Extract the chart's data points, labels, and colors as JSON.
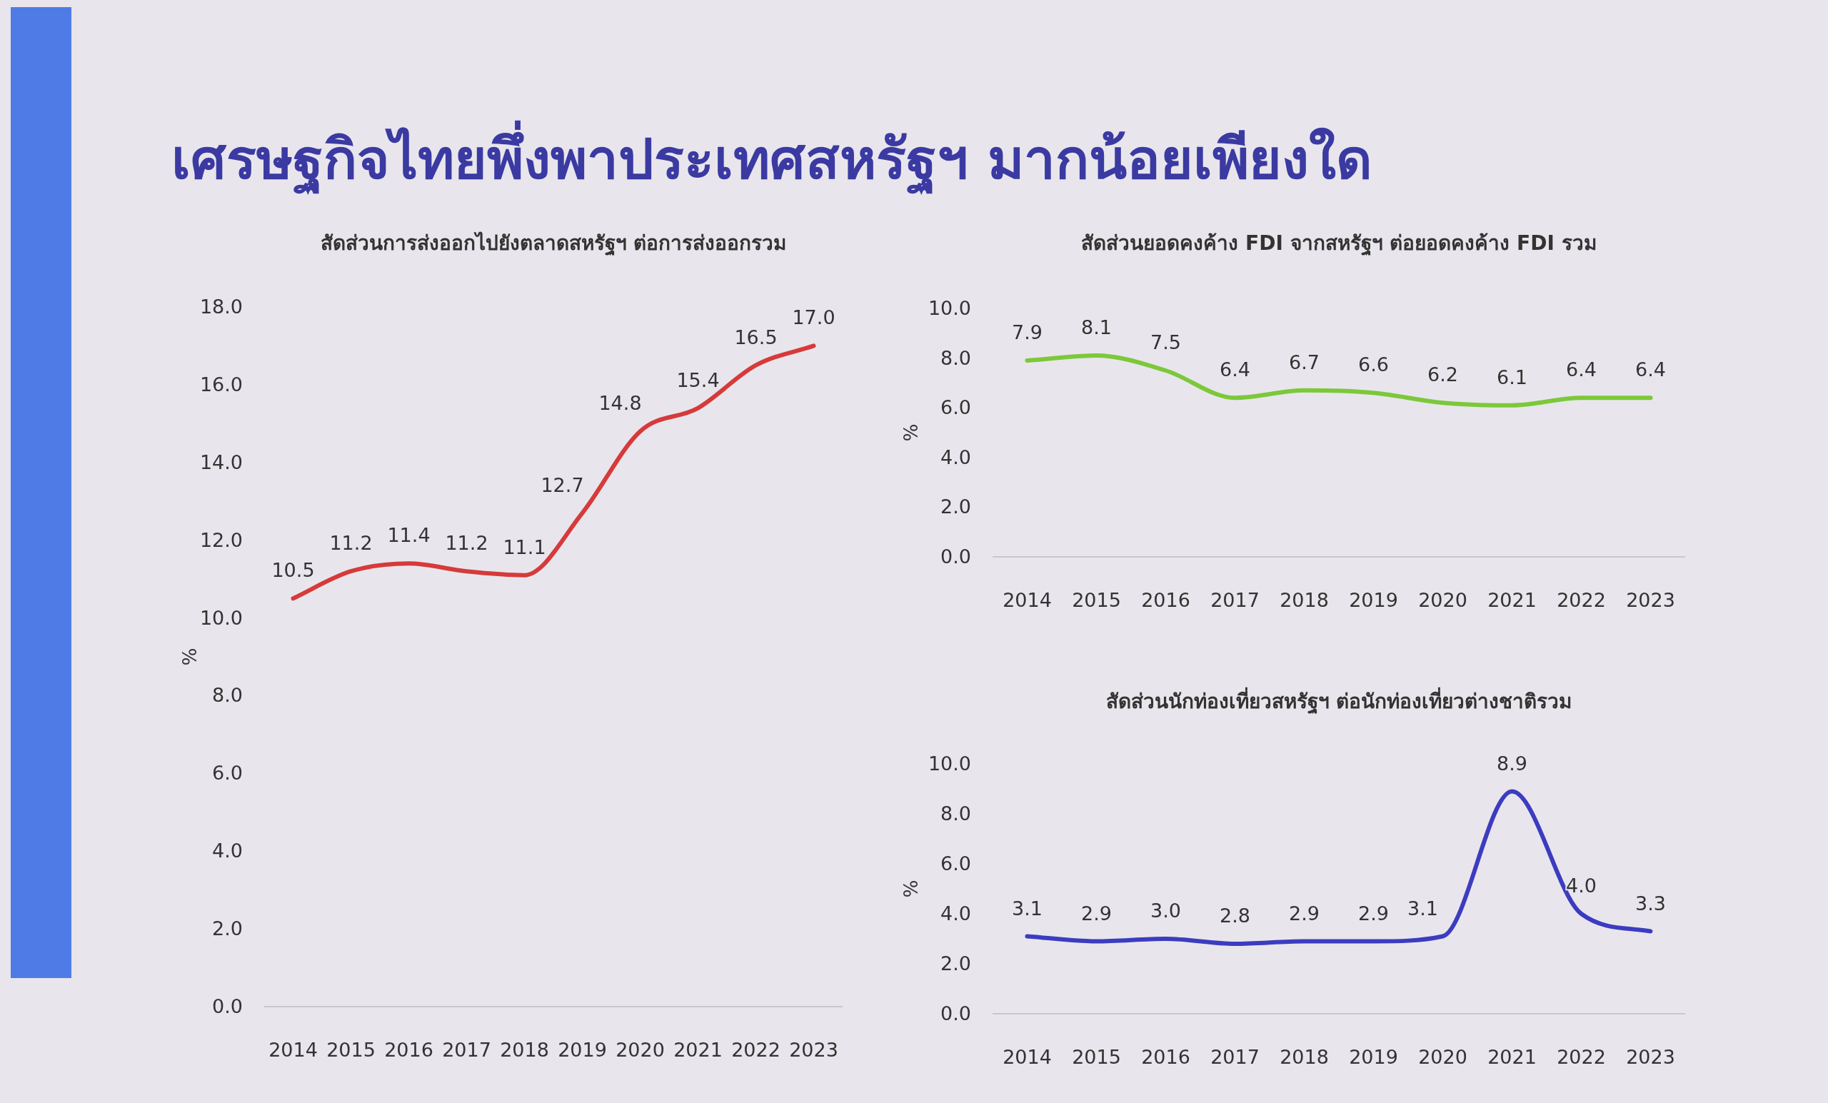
{
  "chart_data": [
    {
      "type": "line",
      "title": "เศรษฐกิจไทยพึ่งพาประเทศสหรัฐฯ มากน้อยเพียงใด",
      "subtitle": "สัดส่วนการส่งออกไปยังตลาดสหรัฐฯ ต่อการส่งออกรวม",
      "ylabel": "%",
      "categories": [
        "2014",
        "2015",
        "2016",
        "2017",
        "2018",
        "2019",
        "2020",
        "2021",
        "2022",
        "2023"
      ],
      "series": [
        {
          "color": "#d63a3a",
          "values": [
            10.5,
            11.2,
            11.4,
            11.2,
            11.1,
            12.7,
            14.8,
            15.4,
            16.5,
            17.0
          ],
          "value_labels": [
            "10.5",
            "11.2",
            "11.4",
            "11.2",
            "11.1",
            "12.7",
            "14.8",
            "15.4",
            "16.5",
            "17.0"
          ]
        }
      ],
      "ylim": [
        0,
        18
      ],
      "yticks": [
        {
          "value": 0,
          "label": "0.0"
        },
        {
          "value": 2,
          "label": "2.0"
        },
        {
          "value": 4,
          "label": "4.0"
        },
        {
          "value": 6,
          "label": "6.0"
        },
        {
          "value": 8,
          "label": "8.0"
        },
        {
          "value": 10,
          "label": "10.0"
        },
        {
          "value": 12,
          "label": "12.0"
        },
        {
          "value": 14,
          "label": "14.0"
        },
        {
          "value": 16,
          "label": "16.0"
        },
        {
          "value": 18,
          "label": "18.0"
        }
      ]
    },
    {
      "type": "line",
      "subtitle": "สัดส่วนยอดคงค้าง FDI จากสหรัฐฯ ต่อยอดคงค้าง FDI รวม",
      "ylabel": "%",
      "categories": [
        "2014",
        "2015",
        "2016",
        "2017",
        "2018",
        "2019",
        "2020",
        "2021",
        "2022",
        "2023"
      ],
      "series": [
        {
          "color": "#7cc83a",
          "values": [
            7.9,
            8.1,
            7.5,
            6.4,
            6.7,
            6.6,
            6.2,
            6.1,
            6.4,
            6.4
          ],
          "value_labels": [
            "7.9",
            "8.1",
            "7.5",
            "6.4",
            "6.7",
            "6.6",
            "6.2",
            "6.1",
            "6.4",
            "6.4"
          ]
        }
      ],
      "ylim": [
        0,
        10
      ],
      "yticks": [
        {
          "value": 0,
          "label": "0.0"
        },
        {
          "value": 2,
          "label": "2.0"
        },
        {
          "value": 4,
          "label": "4.0"
        },
        {
          "value": 6,
          "label": "6.0"
        },
        {
          "value": 8,
          "label": "8.0"
        },
        {
          "value": 10,
          "label": "10.0"
        }
      ]
    },
    {
      "type": "line",
      "subtitle": "สัดส่วนนักท่องเที่ยวสหรัฐฯ ต่อนักท่องเที่ยวต่างชาติรวม",
      "ylabel": "%",
      "categories": [
        "2014",
        "2015",
        "2016",
        "2017",
        "2018",
        "2019",
        "2020",
        "2021",
        "2022",
        "2023"
      ],
      "series": [
        {
          "color": "#3c3cc0",
          "values": [
            3.1,
            2.9,
            3.0,
            2.8,
            2.9,
            2.9,
            3.1,
            8.9,
            4.0,
            3.3
          ],
          "value_labels": [
            "3.1",
            "2.9",
            "3.0",
            "2.8",
            "2.9",
            "2.9",
            "3.1",
            "8.9",
            "4.0",
            "3.3"
          ]
        }
      ],
      "ylim": [
        0,
        10
      ],
      "yticks": [
        {
          "value": 0,
          "label": "0.0"
        },
        {
          "value": 2,
          "label": "2.0"
        },
        {
          "value": 4,
          "label": "4.0"
        },
        {
          "value": 6,
          "label": "6.0"
        },
        {
          "value": 8,
          "label": "8.0"
        },
        {
          "value": 10,
          "label": "10.0"
        }
      ]
    }
  ]
}
